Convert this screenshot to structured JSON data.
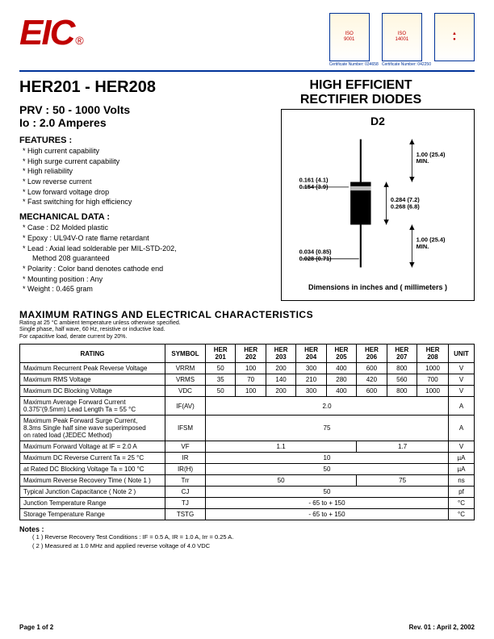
{
  "header": {
    "logo_text": "EIC",
    "logo_reg": "®",
    "badges": [
      {
        "lines": [
          "ISO",
          "9001"
        ],
        "caption": "Certificate Number: 034658"
      },
      {
        "lines": [
          "ISO",
          "14001"
        ],
        "caption": "Certificate Number: 042250"
      },
      {
        "lines": [
          "▲",
          "●"
        ],
        "caption": " "
      }
    ]
  },
  "title": {
    "partrange": "HER201 - HER208",
    "category_l1": "HIGH EFFICIENT",
    "category_l2": "RECTIFIER DIODES",
    "prv": "PRV : 50 - 1000 Volts",
    "io": "Io : 2.0 Amperes"
  },
  "features": {
    "label": "FEATURES :",
    "items": [
      "High current capability",
      "High surge current capability",
      "High reliability",
      "Low reverse current",
      "Low forward voltage drop",
      "Fast switching for high efficiency"
    ]
  },
  "mechanical": {
    "label": "MECHANICAL  DATA :",
    "items": [
      "Case : D2  Molded plastic",
      "Epoxy : UL94V-O rate flame retardant",
      "Lead : Axial lead solderable per MIL-STD-202,",
      "Method 208 guaranteed",
      "Polarity : Color band denotes cathode end",
      "Mounting  position : Any",
      "Weight : 0.465 gram"
    ],
    "indent_indices": [
      3
    ]
  },
  "diagram": {
    "box_title": "D2",
    "lead_len_top": "1.00 (25.4)\nMIN.",
    "lead_len_bot": "1.00 (25.4)\nMIN.",
    "body_len": "0.284 (7.2)\n0.268 (6.8)",
    "body_dia": "0.161 (4.1)\n0.154 (3.9)",
    "lead_dia": "0.034 (0.85)\n0.028 (0.71)",
    "caption": "Dimensions in inches and ( millimeters )"
  },
  "maxratings": {
    "title": "MAXIMUM  RATINGS  AND  ELECTRICAL  CHARACTERISTICS",
    "notes": [
      "Rating at  25 °C ambient temperature unless otherwise specified.",
      "Single phase, half wave, 60 Hz, resistive or inductive load.",
      "For capacitive load, derate current by 20%."
    ],
    "cols": [
      "RATING",
      "SYMBOL",
      "HER\n201",
      "HER\n202",
      "HER\n203",
      "HER\n204",
      "HER\n205",
      "HER\n206",
      "HER\n207",
      "HER\n208",
      "UNIT"
    ],
    "rows": [
      {
        "rating": "Maximum Recurrent Peak Reverse Voltage",
        "symbol": "VRRM",
        "vals": [
          "50",
          "100",
          "200",
          "300",
          "400",
          "600",
          "800",
          "1000"
        ],
        "unit": "V"
      },
      {
        "rating": "Maximum RMS Voltage",
        "symbol": "VRMS",
        "vals": [
          "35",
          "70",
          "140",
          "210",
          "280",
          "420",
          "560",
          "700"
        ],
        "unit": "V"
      },
      {
        "rating": "Maximum DC Blocking Voltage",
        "symbol": "VDC",
        "vals": [
          "50",
          "100",
          "200",
          "300",
          "400",
          "600",
          "800",
          "1000"
        ],
        "unit": "V"
      },
      {
        "rating": "Maximum Average Forward Current\n0.375\"(9.5mm) Lead Length        Ta = 55 °C",
        "symbol": "IF(AV)",
        "span": "2.0",
        "unit": "A"
      },
      {
        "rating": "Maximum Peak Forward Surge Current,\n8.3ms Single half sine wave superimposed\non rated load (JEDEC Method)",
        "symbol": "IFSM",
        "span": "75",
        "unit": "A"
      },
      {
        "rating": "Maximum Forward Voltage at IF = 2.0 A",
        "symbol": "VF",
        "vals_split": [
          {
            "n": 5,
            "v": "1.1"
          },
          {
            "n": 3,
            "v": "1.7"
          }
        ],
        "unit": "V"
      },
      {
        "rating": "Maximum DC Reverse Current     Ta = 25 °C",
        "symbol": "IR",
        "span": "10",
        "unit": "µA"
      },
      {
        "rating": "at Rated DC Blocking Voltage     Ta = 100 °C",
        "symbol": "IR(H)",
        "span": "50",
        "unit": "µA"
      },
      {
        "rating": "Maximum Reverse Recovery Time ( Note 1 )",
        "symbol": "Trr",
        "vals_split": [
          {
            "n": 5,
            "v": "50"
          },
          {
            "n": 3,
            "v": "75"
          }
        ],
        "unit": "ns"
      },
      {
        "rating": "Typical Junction Capacitance ( Note 2 )",
        "symbol": "CJ",
        "span": "50",
        "unit": "pf"
      },
      {
        "rating": "Junction Temperature Range",
        "symbol": "TJ",
        "span": "- 65 to + 150",
        "unit": "°C"
      },
      {
        "rating": "Storage Temperature Range",
        "symbol": "TSTG",
        "span": "- 65 to + 150",
        "unit": "°C"
      }
    ]
  },
  "notes": {
    "title": "Notes :",
    "items": [
      "( 1 )  Reverse Recovery Test Conditions : IF = 0.5 A, IR = 1.0 A, Irr = 0.25 A.",
      "( 2 )  Measured at 1.0 MHz and applied reverse voltage of 4.0 VDC"
    ]
  },
  "footer": {
    "page": "Page 1 of 2",
    "rev": "Rev. 01 : April 2, 2002"
  },
  "style": {
    "accent": "#c00000",
    "rule": "#003399",
    "border": "#000000"
  }
}
